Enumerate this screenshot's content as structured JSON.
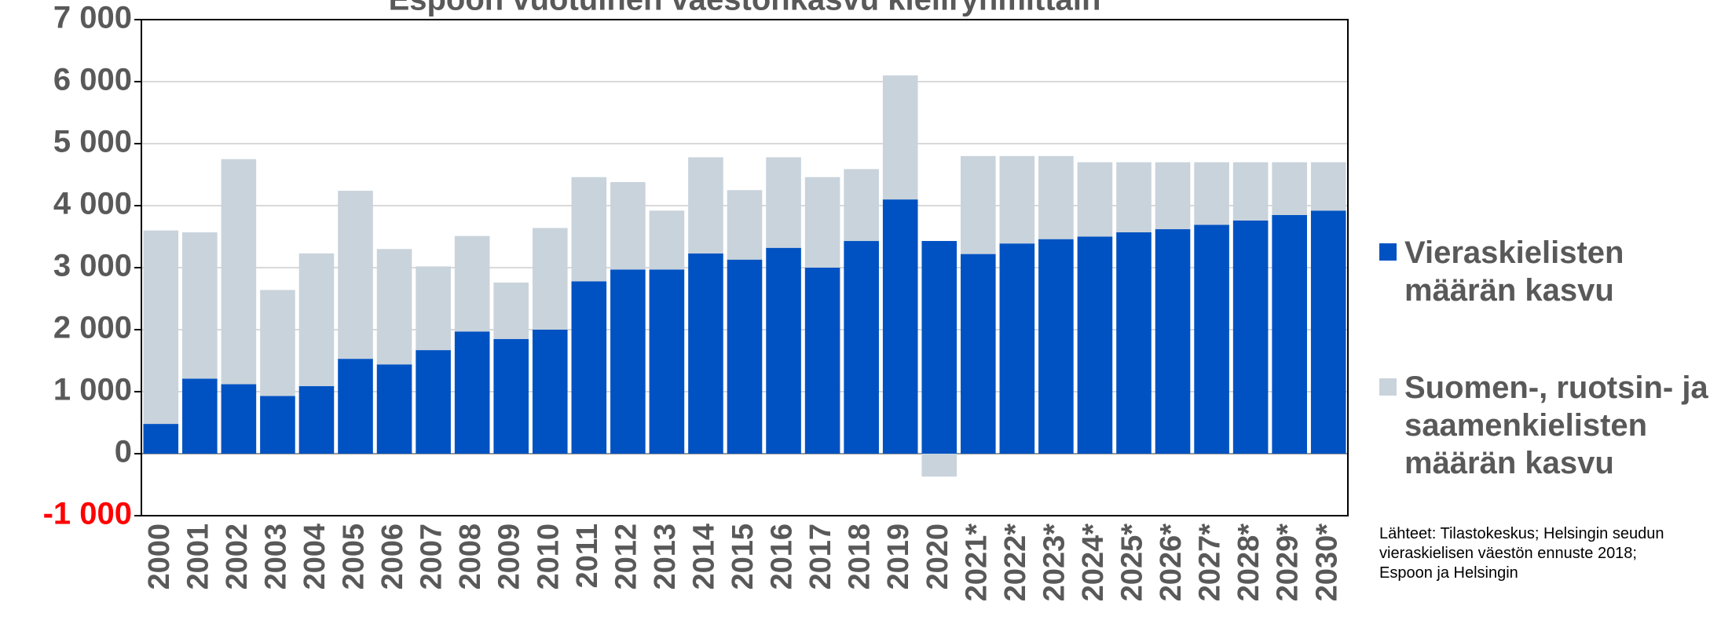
{
  "chart_data": {
    "type": "stacked_bar",
    "title": "Espoon vuotuinen väestönkasvu kieliryhmittäin",
    "categories": [
      "2000",
      "2001",
      "2002",
      "2003",
      "2004",
      "2005",
      "2006",
      "2007",
      "2008",
      "2009",
      "2010",
      "2011",
      "2012",
      "2013",
      "2014",
      "2015",
      "2016",
      "2017",
      "2018",
      "2019",
      "2020",
      "2021*",
      "2022*",
      "2023*",
      "2024*",
      "2025*",
      "2026*",
      "2027*",
      "2028*",
      "2029*",
      "2030*"
    ],
    "series": [
      {
        "name": "Vieraskielisten määrän kasvu",
        "color": "#0052c2",
        "values": [
          480,
          1210,
          1120,
          930,
          1090,
          1530,
          1440,
          1670,
          1970,
          1850,
          2000,
          2780,
          2970,
          2970,
          3230,
          3130,
          3320,
          3000,
          3430,
          4100,
          3430,
          3220,
          3390,
          3460,
          3500,
          3570,
          3620,
          3690,
          3760,
          3850,
          3920
        ]
      },
      {
        "name": "Suomen-, ruotsin- ja saamenkielisten määrän kasvu",
        "color": "#c9d3dc",
        "values": [
          3120,
          2360,
          3630,
          1710,
          2140,
          2710,
          1860,
          1350,
          1540,
          910,
          1640,
          1680,
          1410,
          950,
          1550,
          1120,
          1460,
          1460,
          1160,
          2000,
          -370,
          1580,
          1410,
          1340,
          1200,
          1130,
          1080,
          1010,
          940,
          850,
          780
        ]
      }
    ],
    "ylim": [
      -1000,
      7000
    ],
    "yticks": [
      {
        "value": -1000,
        "label": "-1 000"
      },
      0,
      {
        "value": 1000,
        "label": "1 000"
      },
      {
        "value": 2000,
        "label": "2 000"
      },
      {
        "value": 3000,
        "label": "3 000"
      },
      {
        "value": 4000,
        "label": "4 000"
      },
      {
        "value": 5000,
        "label": "5 000"
      },
      {
        "value": 6000,
        "label": "6 000"
      },
      {
        "value": 7000,
        "label": "7 000"
      }
    ],
    "negative_tick_color": "#ff0000",
    "grid": true,
    "legend": "right",
    "source": "Lähteet: Tilastokeskus; Helsingin seudun vieraskielisen väestön ennuste 2018; Espoon ja Helsingin"
  }
}
